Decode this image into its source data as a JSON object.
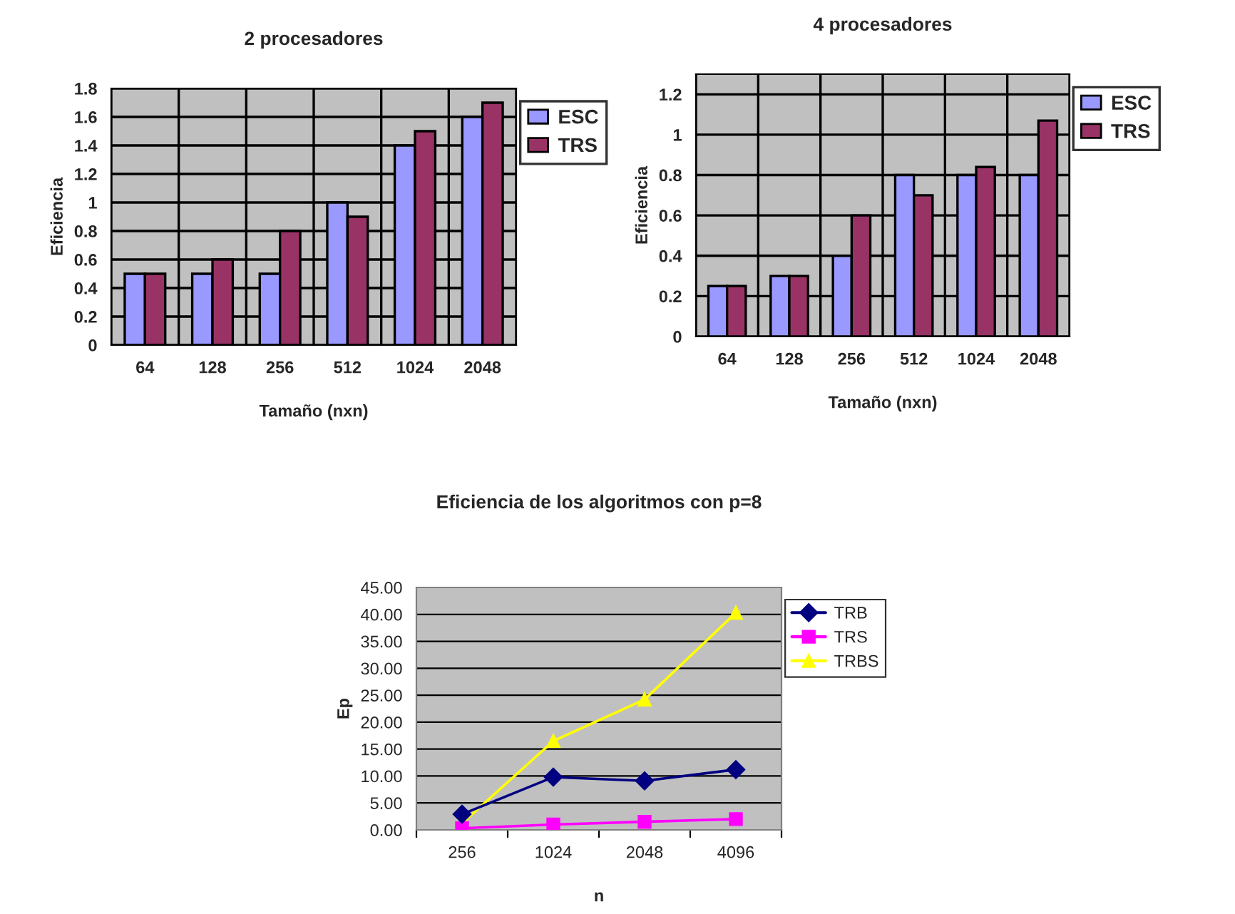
{
  "chart_data": [
    {
      "type": "bar",
      "title": "2 procesadores",
      "xlabel": "Tamaño (nxn)",
      "ylabel": "Eficiencia",
      "categories": [
        "64",
        "128",
        "256",
        "512",
        "1024",
        "2048"
      ],
      "series": [
        {
          "name": "ESC",
          "color": "#9999ff",
          "values": [
            0.5,
            0.5,
            0.5,
            1.0,
            1.4,
            1.6
          ]
        },
        {
          "name": "TRS",
          "color": "#993366",
          "values": [
            0.5,
            0.6,
            0.8,
            0.9,
            1.5,
            1.7
          ]
        }
      ],
      "ylim": [
        0,
        1.8
      ],
      "yticks": [
        0,
        0.2,
        0.4,
        0.6,
        0.8,
        1,
        1.2,
        1.4,
        1.6,
        1.8
      ],
      "grid": true,
      "legend": "right"
    },
    {
      "type": "bar",
      "title": "4 procesadores",
      "xlabel": "Tamaño (nxn)",
      "ylabel": "Eficiencia",
      "categories": [
        "64",
        "128",
        "256",
        "512",
        "1024",
        "2048"
      ],
      "series": [
        {
          "name": "ESC",
          "color": "#9999ff",
          "values": [
            0.25,
            0.3,
            0.4,
            0.8,
            0.8,
            0.8
          ]
        },
        {
          "name": "TRS",
          "color": "#993366",
          "values": [
            0.25,
            0.3,
            0.6,
            0.7,
            0.84,
            1.07
          ]
        }
      ],
      "ylim": [
        0,
        1.3
      ],
      "yticks": [
        0,
        0.2,
        0.4,
        0.6,
        0.8,
        1,
        1.2
      ],
      "grid": true,
      "legend": "right"
    },
    {
      "type": "line",
      "title": "Eficiencia de los algoritmos con p=8",
      "xlabel": "n",
      "ylabel": "Ep",
      "categories": [
        "256",
        "1024",
        "2048",
        "4096"
      ],
      "series": [
        {
          "name": "TRB",
          "color": "#000080",
          "marker": "diamond",
          "values": [
            2.9,
            9.8,
            9.1,
            11.2
          ]
        },
        {
          "name": "TRS",
          "color": "#ff00ff",
          "marker": "square",
          "values": [
            0.3,
            1.0,
            1.5,
            2.0
          ]
        },
        {
          "name": "TRBS",
          "color": "#ffff00",
          "marker": "triangle",
          "values": [
            1.2,
            16.5,
            24.2,
            40.3
          ]
        }
      ],
      "ylim": [
        0,
        45
      ],
      "yticks": [
        {
          "value": 0,
          "label": "0.00"
        },
        {
          "value": 5,
          "label": "5.00"
        },
        {
          "value": 10,
          "label": "10.00"
        },
        {
          "value": 15,
          "label": "15.00"
        },
        {
          "value": 20,
          "label": "20.00"
        },
        {
          "value": 25,
          "label": "25.00"
        },
        {
          "value": 30,
          "label": "30.00"
        },
        {
          "value": 35,
          "label": "35.00"
        },
        {
          "value": 40,
          "label": "40.00"
        },
        {
          "value": 45,
          "label": "45.00"
        }
      ],
      "grid": "y",
      "legend": "right"
    }
  ]
}
